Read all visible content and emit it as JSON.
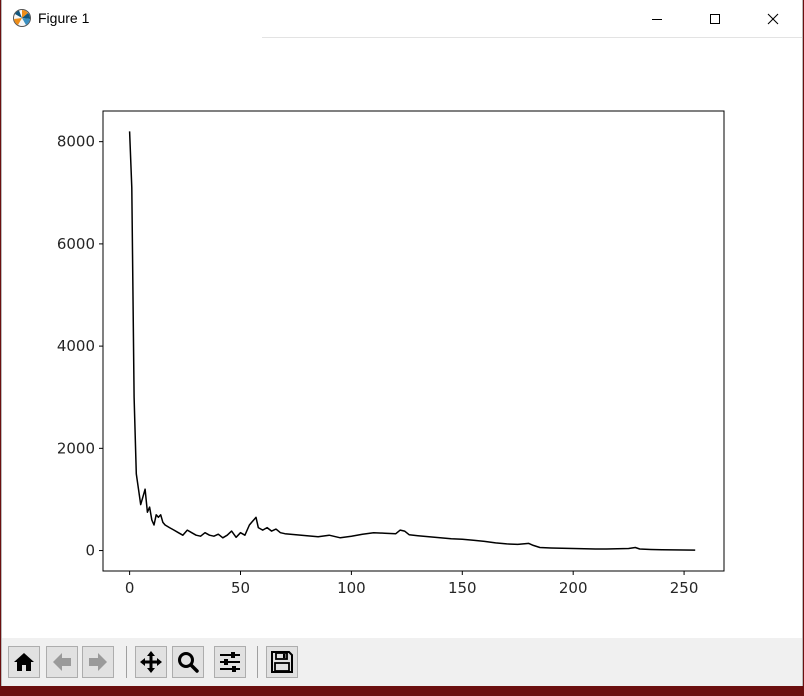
{
  "window": {
    "title": "Figure 1",
    "app_icon": "matplotlib-logo-icon",
    "controls": [
      "minimize-icon",
      "maximize-icon",
      "close-icon"
    ]
  },
  "colors": {
    "line": "#000000",
    "axes": "#000000",
    "tick_label": "#262626",
    "toolbar_bg": "#f0f0f0",
    "desktop_bg": "#6b0f0f"
  },
  "toolbar": {
    "icons": [
      "home-icon",
      "back-arrow-icon",
      "forward-arrow-icon",
      "pan-move-icon",
      "zoom-magnifier-icon",
      "configure-subplots-icon",
      "save-disk-icon"
    ]
  },
  "chart_data": {
    "type": "line",
    "title": "",
    "xlabel": "",
    "ylabel": "",
    "xlim": [
      -12,
      268
    ],
    "ylim": [
      -400,
      8600
    ],
    "xticks": [
      0,
      50,
      100,
      150,
      200,
      250
    ],
    "yticks": [
      0,
      2000,
      4000,
      6000,
      8000
    ],
    "xtick_labels": [
      "0",
      "50",
      "100",
      "150",
      "200",
      "250"
    ],
    "ytick_labels": [
      "0",
      "2000",
      "4000",
      "6000",
      "8000"
    ],
    "grid": false,
    "series": [
      {
        "color": "#000000",
        "x": [
          0,
          1,
          2,
          3,
          4,
          5,
          6,
          7,
          8,
          9,
          10,
          11,
          12,
          13,
          14,
          15,
          16,
          18,
          20,
          22,
          24,
          26,
          28,
          30,
          32,
          34,
          36,
          38,
          40,
          42,
          44,
          46,
          48,
          50,
          52,
          54,
          55,
          56,
          57,
          58,
          60,
          62,
          64,
          66,
          68,
          70,
          75,
          80,
          85,
          90,
          95,
          100,
          105,
          110,
          115,
          120,
          122,
          124,
          126,
          130,
          135,
          140,
          145,
          150,
          155,
          160,
          165,
          170,
          175,
          180,
          182,
          185,
          190,
          195,
          200,
          205,
          210,
          215,
          220,
          225,
          228,
          230,
          235,
          240,
          245,
          250,
          255
        ],
        "y": [
          8200,
          7100,
          3000,
          1500,
          1200,
          900,
          1050,
          1200,
          750,
          850,
          600,
          500,
          700,
          650,
          700,
          550,
          500,
          450,
          400,
          350,
          300,
          400,
          350,
          300,
          280,
          350,
          300,
          280,
          320,
          250,
          300,
          380,
          260,
          350,
          300,
          500,
          550,
          600,
          650,
          450,
          400,
          450,
          380,
          420,
          350,
          330,
          310,
          290,
          270,
          300,
          250,
          280,
          320,
          350,
          340,
          330,
          400,
          380,
          310,
          290,
          270,
          250,
          230,
          220,
          200,
          180,
          150,
          130,
          120,
          140,
          100,
          60,
          50,
          45,
          40,
          35,
          30,
          30,
          35,
          40,
          60,
          30,
          20,
          15,
          12,
          10,
          8
        ]
      }
    ]
  }
}
